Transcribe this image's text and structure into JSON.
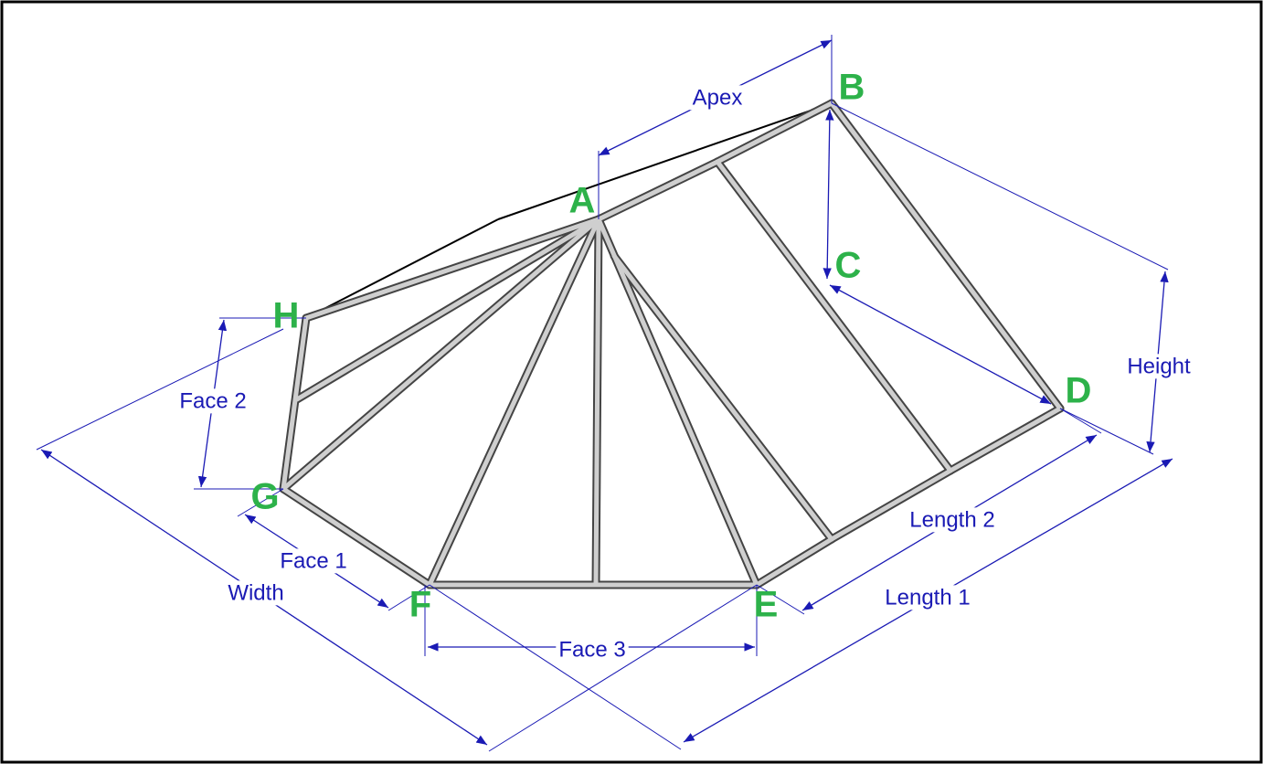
{
  "points": [
    "A",
    "B",
    "C",
    "D",
    "E",
    "F",
    "G",
    "H"
  ],
  "dimensions": [
    "Apex",
    "Height",
    "Face 2",
    "Face 1",
    "Width",
    "Face 3",
    "Length 2",
    "Length 1"
  ]
}
